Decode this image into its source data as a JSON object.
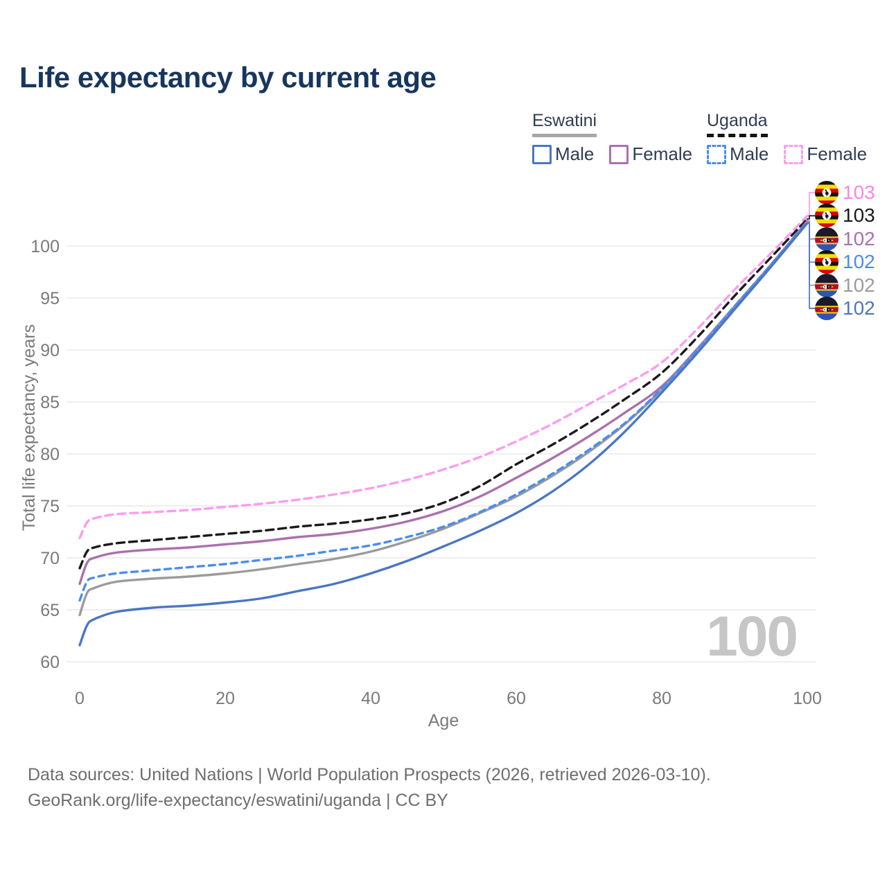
{
  "legend": {
    "groups": [
      {
        "name": "Eswatini",
        "line_style": "solid",
        "underline_color": "#a6a6a6",
        "items": [
          {
            "label": "Male",
            "color": "#4a76c4",
            "dashed": false
          },
          {
            "label": "Female",
            "color": "#ab70ad",
            "dashed": false
          }
        ]
      },
      {
        "name": "Uganda",
        "line_style": "dashed",
        "underline_color": "#141414",
        "items": [
          {
            "label": "Male",
            "color": "#4a8cf0",
            "dashed": true
          },
          {
            "label": "Female",
            "color": "#fb9cf0",
            "dashed": true
          }
        ]
      }
    ]
  },
  "chart_data": {
    "type": "line",
    "title": "Life expectancy by current age",
    "xlabel": "Age",
    "ylabel": "Total life expectancy, years",
    "x_ticks": [
      0,
      20,
      40,
      60,
      80,
      100
    ],
    "y_ticks": [
      60,
      65,
      70,
      75,
      80,
      85,
      90,
      95,
      100
    ],
    "xlim": [
      0,
      100
    ],
    "ylim": [
      58,
      103.5
    ],
    "grid": "horizontal",
    "ages": [
      0,
      1,
      2,
      5,
      10,
      15,
      20,
      25,
      30,
      35,
      40,
      45,
      50,
      55,
      60,
      65,
      70,
      75,
      80,
      85,
      90,
      95,
      100
    ],
    "series": [
      {
        "name": "Eswatini Male",
        "country": "Eswatini",
        "sex": "Male",
        "color": "#4a76c4",
        "dash": null,
        "values": [
          61.6,
          63.5,
          64.1,
          64.8,
          65.2,
          65.4,
          65.7,
          66.1,
          66.8,
          67.5,
          68.5,
          69.7,
          71.1,
          72.6,
          74.3,
          76.4,
          79.0,
          82.2,
          85.9,
          89.8,
          93.9,
          98.0,
          102.2
        ]
      },
      {
        "name": "Eswatini Female",
        "country": "Eswatini",
        "sex": "Female",
        "color": "#ab70ad",
        "dash": null,
        "values": [
          67.5,
          69.5,
          70.0,
          70.5,
          70.8,
          71.0,
          71.3,
          71.6,
          72.0,
          72.3,
          72.8,
          73.5,
          74.5,
          75.9,
          77.7,
          79.6,
          81.7,
          84.0,
          86.5,
          90.2,
          94.2,
          98.2,
          102.4
        ]
      },
      {
        "name": "Eswatini Both sexes",
        "country": "Eswatini",
        "sex": "Both",
        "color": "#9b9b9b",
        "dash": null,
        "values": [
          64.5,
          66.6,
          67.1,
          67.7,
          68.0,
          68.2,
          68.5,
          68.9,
          69.4,
          69.9,
          70.6,
          71.6,
          72.8,
          74.3,
          75.9,
          77.9,
          80.2,
          82.9,
          86.2,
          90.0,
          94.1,
          98.1,
          102.3
        ]
      },
      {
        "name": "Uganda Male",
        "country": "Uganda",
        "sex": "Male",
        "color": "#4a8cf0",
        "dash": "9 7",
        "values": [
          65.9,
          67.7,
          68.1,
          68.5,
          68.8,
          69.1,
          69.4,
          69.8,
          70.2,
          70.7,
          71.2,
          72.0,
          73.0,
          74.4,
          76.1,
          78.1,
          80.4,
          83.0,
          86.3,
          90.1,
          94.2,
          98.2,
          102.3
        ]
      },
      {
        "name": "Uganda Both sexes",
        "country": "Uganda",
        "sex": "Both",
        "color": "#1a1a1a",
        "dash": "11 7",
        "values": [
          69.0,
          70.6,
          71.0,
          71.4,
          71.7,
          72.0,
          72.3,
          72.6,
          73.0,
          73.3,
          73.7,
          74.3,
          75.3,
          76.9,
          79.0,
          80.9,
          83.0,
          85.3,
          87.8,
          91.3,
          95.2,
          98.9,
          102.6
        ]
      },
      {
        "name": "Uganda Female",
        "country": "Uganda",
        "sex": "Female",
        "color": "#fb9cf0",
        "dash": "11 7",
        "values": [
          71.9,
          73.4,
          73.8,
          74.2,
          74.4,
          74.6,
          74.9,
          75.2,
          75.6,
          76.1,
          76.7,
          77.5,
          78.5,
          79.7,
          81.2,
          82.9,
          84.8,
          86.7,
          88.8,
          92.1,
          95.8,
          99.3,
          102.9
        ]
      }
    ],
    "legend_position": "top-right"
  },
  "end_labels": [
    {
      "series": "Uganda Female",
      "flag": "uganda",
      "value": "103",
      "color": "#f884f0"
    },
    {
      "series": "Uganda Both sexes",
      "flag": "uganda",
      "value": "103",
      "color": "#1a1a1a"
    },
    {
      "series": "Eswatini Female",
      "flag": "eswatini",
      "value": "102",
      "color": "#ab70ad"
    },
    {
      "series": "Uganda Male",
      "flag": "uganda",
      "value": "102",
      "color": "#4a8cf0"
    },
    {
      "series": "Eswatini Both sexes",
      "flag": "eswatini",
      "value": "102",
      "color": "#9b9b9b"
    },
    {
      "series": "Eswatini Male",
      "flag": "eswatini",
      "value": "102",
      "color": "#4a76c4"
    }
  ],
  "age_indicator": "100",
  "footer": {
    "line1": "Data sources: United Nations | World Population Prospects (2026, retrieved 2026-03-10).",
    "line2": "GeoRank.org/life-expectancy/eswatini/uganda | CC BY"
  }
}
